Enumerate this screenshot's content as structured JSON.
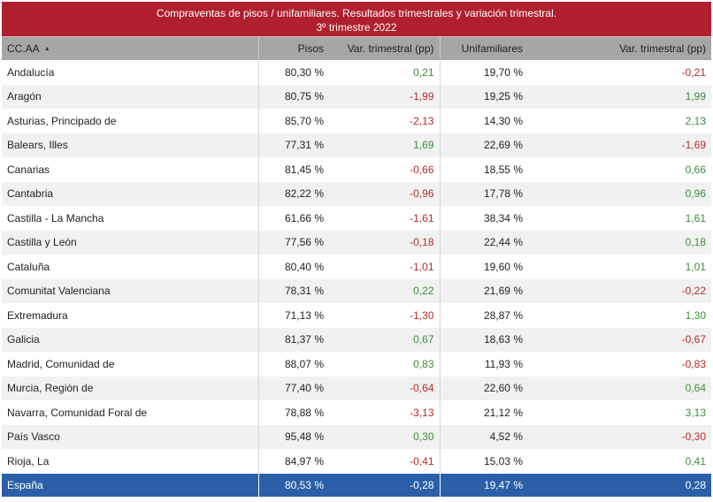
{
  "header": {
    "title_line1": "Compraventas de pisos / unifamiliares. Resultados trimestrales  y variación trimestral.",
    "title_line2": "3º trimestre 2022"
  },
  "colors": {
    "title_bg": "#b01f2e",
    "header_bg": "#a6a6a6",
    "total_bg": "#2b5fa8",
    "positive": "#3c8c3c",
    "negative": "#b72a2a"
  },
  "columns": [
    {
      "label": "CC.AA",
      "sort_icon": "▲"
    },
    {
      "label": "Pisos"
    },
    {
      "label": "Var. trimestral (pp)"
    },
    {
      "label": "Unifamiliares"
    },
    {
      "label": "Var. trimestral (pp)"
    }
  ],
  "rows": [
    {
      "region": "Andalucía",
      "pisos": "80,30 %",
      "var_pisos": "0,21",
      "unif": "19,70 %",
      "var_unif": "-0,21"
    },
    {
      "region": "Aragón",
      "pisos": "80,75 %",
      "var_pisos": "-1,99",
      "unif": "19,25 %",
      "var_unif": "1,99"
    },
    {
      "region": "Asturias, Principado de",
      "pisos": "85,70 %",
      "var_pisos": "-2,13",
      "unif": "14,30 %",
      "var_unif": "2,13"
    },
    {
      "region": "Balears, Illes",
      "pisos": "77,31 %",
      "var_pisos": "1,69",
      "unif": "22,69 %",
      "var_unif": "-1,69"
    },
    {
      "region": "Canarias",
      "pisos": "81,45 %",
      "var_pisos": "-0,66",
      "unif": "18,55 %",
      "var_unif": "0,66"
    },
    {
      "region": "Cantabria",
      "pisos": "82,22 %",
      "var_pisos": "-0,96",
      "unif": "17,78 %",
      "var_unif": "0,96"
    },
    {
      "region": "Castilla - La Mancha",
      "pisos": "61,66 %",
      "var_pisos": "-1,61",
      "unif": "38,34 %",
      "var_unif": "1,61"
    },
    {
      "region": "Castilla y León",
      "pisos": "77,56 %",
      "var_pisos": "-0,18",
      "unif": "22,44 %",
      "var_unif": "0,18"
    },
    {
      "region": "Cataluña",
      "pisos": "80,40 %",
      "var_pisos": "-1,01",
      "unif": "19,60 %",
      "var_unif": "1,01"
    },
    {
      "region": "Comunitat Valenciana",
      "pisos": "78,31 %",
      "var_pisos": "0,22",
      "unif": "21,69 %",
      "var_unif": "-0,22"
    },
    {
      "region": "Extremadura",
      "pisos": "71,13 %",
      "var_pisos": "-1,30",
      "unif": "28,87 %",
      "var_unif": "1,30"
    },
    {
      "region": "Galicia",
      "pisos": "81,37 %",
      "var_pisos": "0,67",
      "unif": "18,63 %",
      "var_unif": "-0,67"
    },
    {
      "region": "Madrid, Comunidad de",
      "pisos": "88,07 %",
      "var_pisos": "0,83",
      "unif": "11,93 %",
      "var_unif": "-0,83"
    },
    {
      "region": "Murcia, Región de",
      "pisos": "77,40 %",
      "var_pisos": "-0,64",
      "unif": "22,60 %",
      "var_unif": "0,64"
    },
    {
      "region": "Navarra, Comunidad Foral de",
      "pisos": "78,88 %",
      "var_pisos": "-3,13",
      "unif": "21,12 %",
      "var_unif": "3,13"
    },
    {
      "region": "País Vasco",
      "pisos": "95,48 %",
      "var_pisos": "0,30",
      "unif": "4,52 %",
      "var_unif": "-0,30"
    },
    {
      "region": "Rioja, La",
      "pisos": "84,97 %",
      "var_pisos": "-0,41",
      "unif": "15,03 %",
      "var_unif": "0,41"
    }
  ],
  "total": {
    "region": "España",
    "pisos": "80,53 %",
    "var_pisos": "-0,28",
    "unif": "19,47 %",
    "var_unif": "0,28"
  }
}
